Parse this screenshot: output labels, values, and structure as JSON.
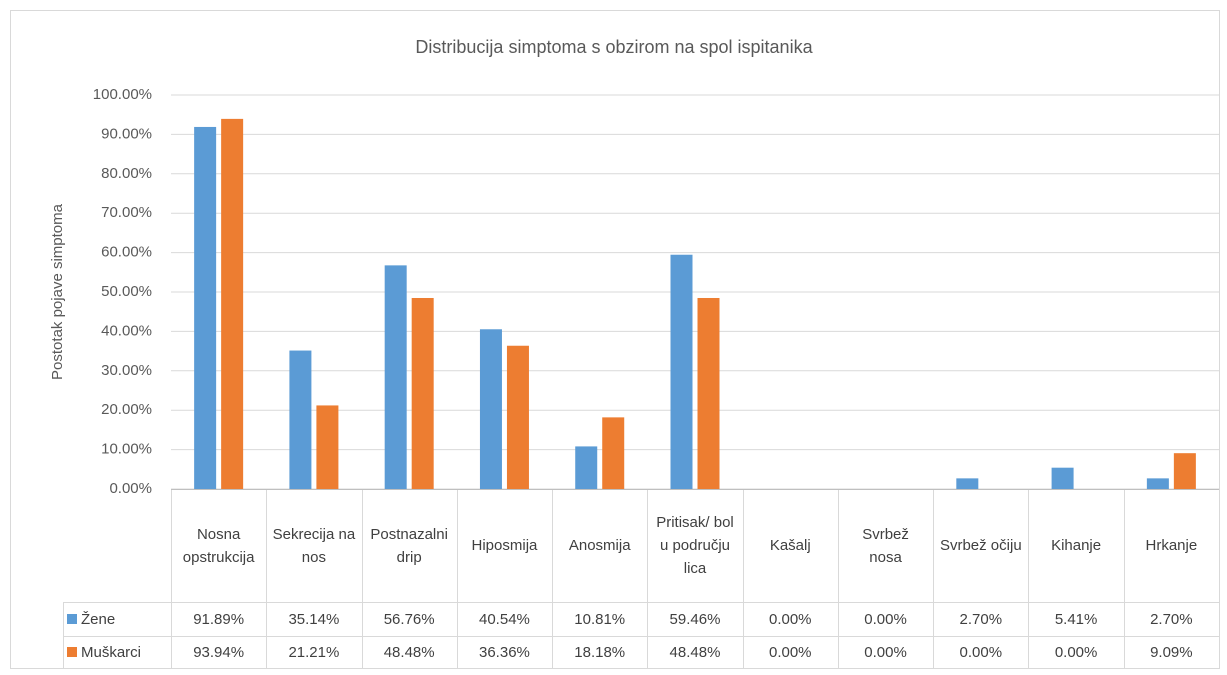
{
  "chart_data": {
    "type": "bar",
    "title": "Distribucija simptoma s obzirom na spol ispitanika",
    "y_label": "Postotak pojave simptoma",
    "categories": [
      "Nosna opstrukcija",
      "Sekrecija na nos",
      "Postnazalni drip",
      "Hiposmija",
      "Anosmija",
      "Pritisak/ bol u području lica",
      "Kašalj",
      "Svrbež nosa",
      "Svrbež očiju",
      "Kihanje",
      "Hrkanje"
    ],
    "series": [
      {
        "name": "Žene",
        "color": "#5b9bd5",
        "values": [
          91.89,
          35.14,
          56.76,
          40.54,
          10.81,
          59.46,
          0,
          0,
          2.7,
          5.41,
          2.7
        ],
        "value_labels": [
          "91.89%",
          "35.14%",
          "56.76%",
          "40.54%",
          "10.81%",
          "59.46%",
          "0.00%",
          "0.00%",
          "2.70%",
          "5.41%",
          "2.70%"
        ]
      },
      {
        "name": "Muškarci",
        "color": "#ed7d31",
        "values": [
          93.94,
          21.21,
          48.48,
          36.36,
          18.18,
          48.48,
          0,
          0,
          0,
          0,
          9.09
        ],
        "value_labels": [
          "93.94%",
          "21.21%",
          "48.48%",
          "36.36%",
          "18.18%",
          "48.48%",
          "0.00%",
          "0.00%",
          "0.00%",
          "0.00%",
          "9.09%"
        ]
      }
    ],
    "ylim": [
      0,
      100
    ],
    "yticks": [
      {
        "value": 0,
        "label": "0.00%"
      },
      {
        "value": 10,
        "label": "10.00%"
      },
      {
        "value": 20,
        "label": "20.00%"
      },
      {
        "value": 30,
        "label": "30.00%"
      },
      {
        "value": 40,
        "label": "40.00%"
      },
      {
        "value": 50,
        "label": "50.00%"
      },
      {
        "value": 60,
        "label": "60.00%"
      },
      {
        "value": 70,
        "label": "70.00%"
      },
      {
        "value": 80,
        "label": "80.00%"
      },
      {
        "value": 90,
        "label": "90.00%"
      },
      {
        "value": 100,
        "label": "100.00%"
      }
    ],
    "grid": true
  }
}
